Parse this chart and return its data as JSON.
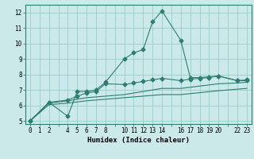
{
  "xlabel": "Humidex (Indice chaleur)",
  "ylabel": "",
  "xlim": [
    -0.5,
    23.5
  ],
  "ylim": [
    4.8,
    12.5
  ],
  "xticks": [
    0,
    1,
    2,
    3,
    4,
    5,
    6,
    7,
    8,
    9,
    10,
    11,
    12,
    13,
    14,
    15,
    16,
    17,
    18,
    19,
    20,
    21,
    22,
    23
  ],
  "xtick_labels": [
    "0",
    "1",
    "2",
    "",
    "4",
    "5",
    "6",
    "7",
    "8",
    "",
    "10",
    "11",
    "12",
    "13",
    "14",
    "",
    "16",
    "17",
    "18",
    "19",
    "20",
    "",
    "22",
    "23"
  ],
  "yticks": [
    5,
    6,
    7,
    8,
    9,
    10,
    11,
    12
  ],
  "background_color": "#cce9e9",
  "grid_color": "#99cccc",
  "line_color": "#2e7d6e",
  "lines": [
    {
      "x": [
        0,
        2,
        4,
        5,
        6,
        7,
        8,
        10,
        11,
        12,
        13,
        14,
        16,
        17,
        18,
        19,
        20,
        22,
        23
      ],
      "y": [
        5.0,
        6.2,
        5.3,
        6.9,
        6.9,
        7.0,
        7.5,
        9.0,
        9.4,
        9.6,
        11.4,
        12.1,
        10.2,
        7.8,
        7.8,
        7.85,
        7.9,
        7.6,
        7.6
      ],
      "marker": "D",
      "markersize": 2.5
    },
    {
      "x": [
        0,
        2,
        4,
        5,
        6,
        7,
        8,
        10,
        11,
        12,
        13,
        14,
        16,
        17,
        18,
        19,
        20,
        22,
        23
      ],
      "y": [
        5.0,
        6.2,
        6.35,
        6.6,
        6.8,
        6.9,
        7.4,
        7.35,
        7.45,
        7.55,
        7.65,
        7.75,
        7.6,
        7.7,
        7.75,
        7.8,
        7.9,
        7.6,
        7.65
      ],
      "marker": "D",
      "markersize": 2.5
    },
    {
      "x": [
        0,
        2,
        4,
        6,
        10,
        14,
        16,
        20,
        22,
        23
      ],
      "y": [
        5.0,
        6.15,
        6.3,
        6.5,
        6.7,
        7.1,
        7.1,
        7.4,
        7.45,
        7.5
      ],
      "marker": null,
      "markersize": 0
    },
    {
      "x": [
        0,
        2,
        4,
        6,
        10,
        14,
        16,
        20,
        22,
        23
      ],
      "y": [
        5.0,
        6.05,
        6.15,
        6.3,
        6.5,
        6.7,
        6.7,
        6.95,
        7.05,
        7.1
      ],
      "marker": null,
      "markersize": 0
    }
  ]
}
